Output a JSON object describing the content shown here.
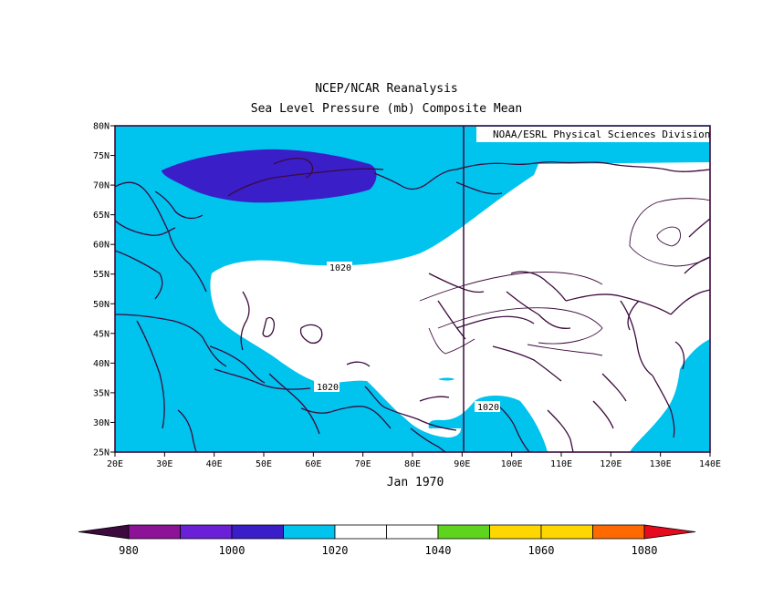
{
  "title": "NCEP/NCAR Reanalysis",
  "subtitle": "Sea Level Pressure (mb) Composite Mean",
  "credit": "NOAA/ESRL Physical Sciences Division",
  "time_label": "Jan 1970",
  "x_ticks": [
    "20E",
    "30E",
    "40E",
    "50E",
    "60E",
    "70E",
    "80E",
    "90E",
    "100E",
    "110E",
    "120E",
    "130E",
    "140E"
  ],
  "y_ticks": [
    "25N",
    "30N",
    "35N",
    "40N",
    "45N",
    "50N",
    "55N",
    "60N",
    "65N",
    "70N",
    "75N",
    "80N"
  ],
  "map_extent": {
    "lon": [
      20,
      140
    ],
    "lat": [
      25,
      80
    ]
  },
  "contour_labels": [
    "1020",
    "1020",
    "1020"
  ],
  "colors": {
    "frame": "#3c0a3c",
    "coast": "#3c0a3c",
    "lt_1000": "#3a1ec8",
    "1010_1020": "#00c3ee",
    "1020_1040": "#ffffff"
  },
  "colorbar": {
    "labels": [
      "980",
      "1000",
      "1020",
      "1040",
      "1060",
      "1080"
    ],
    "bins": [
      {
        "color": "#8c1396"
      },
      {
        "color": "#6a20d6"
      },
      {
        "color": "#3a1ec8"
      },
      {
        "color": "#00c3ee"
      },
      {
        "color": "#ffffff"
      },
      {
        "color": "#ffffff"
      },
      {
        "color": "#5fd41e"
      },
      {
        "color": "#ffd700"
      },
      {
        "color": "#ffd700"
      },
      {
        "color": "#ff6a00"
      }
    ],
    "low_end_color": "#3c0a3c",
    "high_end_color": "#e60a1e"
  }
}
